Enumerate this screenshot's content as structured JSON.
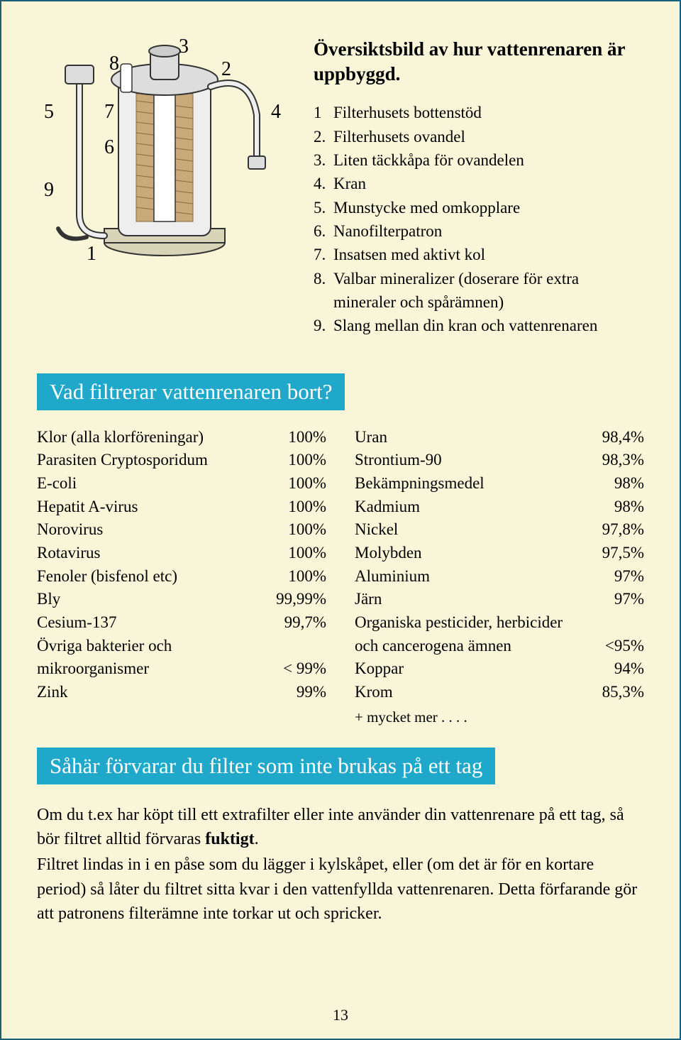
{
  "overview": {
    "title": "Översiktsbild av hur vattenrenaren är uppbyggd.",
    "parts": [
      {
        "n": "1",
        "t": "Filterhusets bottenstöd"
      },
      {
        "n": "2.",
        "t": "Filterhusets ovandel"
      },
      {
        "n": "3.",
        "t": "Liten täckkåpa för ovandelen"
      },
      {
        "n": "4.",
        "t": "Kran"
      },
      {
        "n": "5.",
        "t": "Munstycke med omkopplare"
      },
      {
        "n": "6.",
        "t": "Nanofilterpatron"
      },
      {
        "n": "7.",
        "t": "Insatsen med aktivt kol"
      },
      {
        "n": "8.",
        "t": "Valbar mineralizer (doserare för extra mineraler och spårämnen)"
      },
      {
        "n": "9.",
        "t": "Slang mellan din kran och vattenrenaren"
      }
    ],
    "labels": {
      "l1": "1",
      "l2": "2",
      "l3": "3",
      "l4": "4",
      "l5": "5",
      "l6": "6",
      "l7": "7",
      "l8": "8",
      "l9": "9"
    }
  },
  "filter": {
    "heading": "Vad filtrerar vattenrenaren bort?",
    "left": [
      {
        "name": "Klor (alla klorföreningar)",
        "val": "100%"
      },
      {
        "name": "Parasiten Cryptosporidum",
        "val": "100%"
      },
      {
        "name": "E-coli",
        "val": "100%"
      },
      {
        "name": "Hepatit A-virus",
        "val": "100%"
      },
      {
        "name": "Norovirus",
        "val": "100%"
      },
      {
        "name": "Rotavirus",
        "val": "100%"
      },
      {
        "name": "Fenoler (bisfenol etc)",
        "val": "100%"
      },
      {
        "name": "Bly",
        "val": "99,99%"
      },
      {
        "name": "Cesium-137",
        "val": "99,7%"
      },
      {
        "name": "Övriga bakterier och",
        "val": ""
      },
      {
        "name": "mikroorganismer",
        "val": "< 99%"
      },
      {
        "name": "Zink",
        "val": "99%"
      }
    ],
    "right": [
      {
        "name": "Uran",
        "val": "98,4%"
      },
      {
        "name": "Strontium-90",
        "val": "98,3%"
      },
      {
        "name": "Bekämpningsmedel",
        "val": "98%"
      },
      {
        "name": "Kadmium",
        "val": "98%"
      },
      {
        "name": "Nickel",
        "val": "97,8%"
      },
      {
        "name": "Molybden",
        "val": "97,5%"
      },
      {
        "name": "Aluminium",
        "val": "97%"
      },
      {
        "name": "Järn",
        "val": "97%"
      },
      {
        "name": "Organiska pesticider, herbicider",
        "val": ""
      },
      {
        "name": "och cancerogena ämnen",
        "val": "<95%"
      },
      {
        "name": "Koppar",
        "val": "94%"
      },
      {
        "name": "Krom",
        "val": "85,3%"
      }
    ],
    "extra": "+ mycket mer . . . ."
  },
  "storage": {
    "heading": "Såhär förvarar du filter som inte brukas på ett tag",
    "p1a": "Om du t.ex har köpt till ett extrafilter eller inte använder din vattenrenare på ett tag, så bör filtret alltid förvaras ",
    "p1b": "fuktigt",
    "p1c": ".",
    "p2": "Filtret lindas in i en påse som du lägger i kylskåpet, eller (om det är för en kortare period) så låter du filtret sitta kvar i den vattenfyllda vattenrenaren. Detta förfarande gör att patronens filterämne inte torkar ut och spricker."
  },
  "page": "13"
}
